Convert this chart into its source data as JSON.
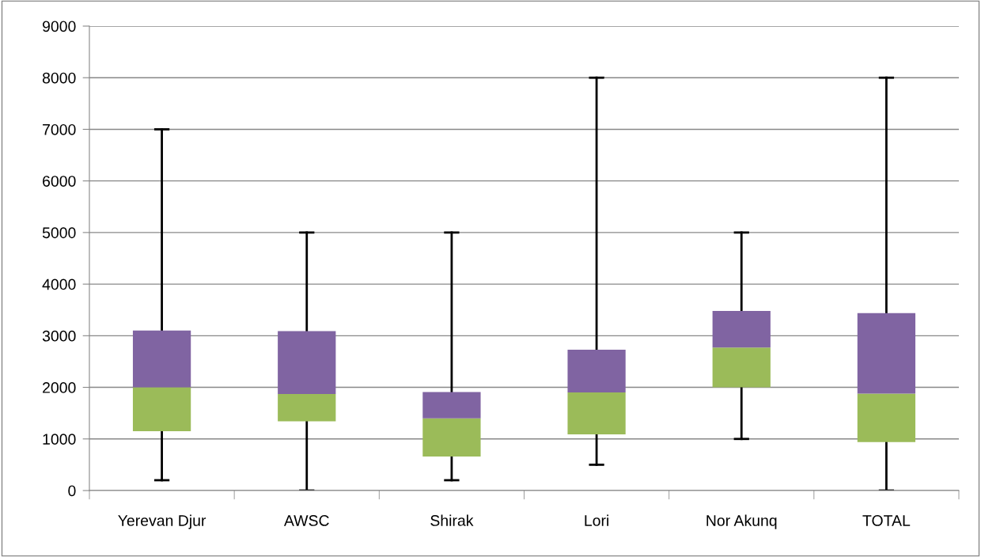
{
  "chart_data": {
    "type": "box",
    "categories": [
      "Yerevan Djur",
      "AWSC",
      "Shirak",
      "Lori",
      "Nor Akunq",
      "TOTAL"
    ],
    "boxes": [
      {
        "low": 200,
        "q1": 1150,
        "median": 2000,
        "q3": 3100,
        "high": 7000
      },
      {
        "low": 0,
        "q1": 1340,
        "median": 1870,
        "q3": 3090,
        "high": 5000
      },
      {
        "low": 200,
        "q1": 660,
        "median": 1400,
        "q3": 1910,
        "high": 5000
      },
      {
        "low": 500,
        "q1": 1090,
        "median": 1900,
        "q3": 2730,
        "high": 8000
      },
      {
        "low": 1000,
        "q1": 2000,
        "median": 2770,
        "q3": 3480,
        "high": 5000
      },
      {
        "low": 0,
        "q1": 940,
        "median": 1880,
        "q3": 3440,
        "high": 8000
      }
    ],
    "colors": [
      [
        "#9bbb59",
        "#8064a2"
      ],
      [
        "#9bbb59",
        "#8064a2"
      ],
      [
        "#9bbb59",
        "#8064a2"
      ],
      [
        "#9bbb59",
        "#8064a2"
      ],
      [
        "#9bbb59",
        "#8064a2"
      ],
      [
        "#9bbb59",
        "#8064a2"
      ]
    ],
    "ylim": [
      0,
      9000
    ],
    "yticks": [
      0,
      1000,
      2000,
      3000,
      4000,
      5000,
      6000,
      7000,
      8000,
      9000
    ],
    "grid": "y",
    "legend": false
  }
}
